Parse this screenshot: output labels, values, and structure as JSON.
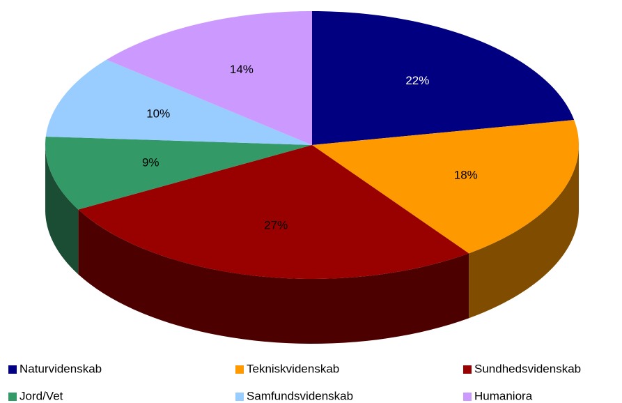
{
  "chart_data": {
    "type": "pie3d",
    "categories": [
      "Naturvidenskab",
      "Tekniskvidenskab",
      "Sundhedsvidenskab",
      "Jord/Vet",
      "Samfundsvidenskab",
      "Humaniora"
    ],
    "values": [
      22,
      18,
      27,
      9,
      10,
      14
    ],
    "value_labels": [
      "22%",
      "18%",
      "27%",
      "9%",
      "10%",
      "14%"
    ],
    "colors": [
      "#000080",
      "#FF9900",
      "#990000",
      "#339966",
      "#99CCFF",
      "#CC99FF"
    ],
    "label_colors": [
      "#FFFFFF",
      "#000000",
      "#000000",
      "#000000",
      "#000000",
      "#000000"
    ],
    "legend": "bottom"
  }
}
